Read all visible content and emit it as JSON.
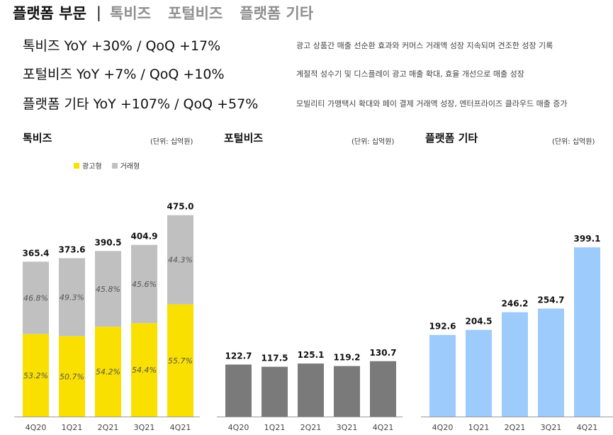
{
  "header": {
    "active": "플랫폼 부문",
    "separator": "|",
    "tabs": [
      "톡비즈",
      "포털비즈",
      "플랫폼 기타"
    ]
  },
  "growth": [
    {
      "label": "톡비즈  YoY +30% / QoQ +17%",
      "desc": "광고 상품간 매출 선순환 효과와 커머스 거래액 성장 지속되며 견조한 성장 기록"
    },
    {
      "label": "포털비즈  YoY +7% / QoQ +10%",
      "desc": "계절적 성수기 및 디스플레이 광고 매출 확대, 효율 개선으로 매출 성장"
    },
    {
      "label": "플랫폼 기타  YoY +107% / QoQ +57%",
      "desc": "모빌리티 가맹택시  확대와 페이 결제 거래액 성장, 엔터프라이즈 클라우드 매출 증가"
    }
  ],
  "chart_data": [
    {
      "type": "bar",
      "stacked": true,
      "title": "톡비즈",
      "unit": "(단위: 십억원)",
      "categories": [
        "4Q20",
        "1Q21",
        "2Q21",
        "3Q21",
        "4Q21"
      ],
      "totals": [
        "365.4",
        "373.6",
        "390.5",
        "404.9",
        "475.0"
      ],
      "series": [
        {
          "name": "광고형",
          "share_labels": [
            "53.2%",
            "50.7%",
            "54.2%",
            "54.4%",
            "55.7%"
          ],
          "share": [
            53.2,
            50.7,
            54.2,
            54.4,
            55.7
          ],
          "color": "#f9e000"
        },
        {
          "name": "거래형",
          "share_labels": [
            "46.8%",
            "49.3%",
            "45.8%",
            "45.6%",
            "44.3%"
          ],
          "share": [
            46.8,
            49.3,
            45.8,
            45.6,
            44.3
          ],
          "color": "#c0c0c0"
        }
      ],
      "legend": "top-left"
    },
    {
      "type": "bar",
      "title": "포털비즈",
      "unit": "(단위: 십억원)",
      "categories": [
        "4Q20",
        "1Q21",
        "2Q21",
        "3Q21",
        "4Q21"
      ],
      "values": [
        "122.7",
        "117.5",
        "125.1",
        "119.2",
        "130.7"
      ],
      "color": "#7a7a7a"
    },
    {
      "type": "bar",
      "title": "플랫폼 기타",
      "unit": "(단위: 십억원)",
      "categories": [
        "4Q20",
        "1Q21",
        "2Q21",
        "3Q21",
        "4Q21"
      ],
      "values": [
        "192.6",
        "204.5",
        "246.2",
        "254.7",
        "399.1"
      ],
      "color": "#9dcbfb"
    }
  ]
}
